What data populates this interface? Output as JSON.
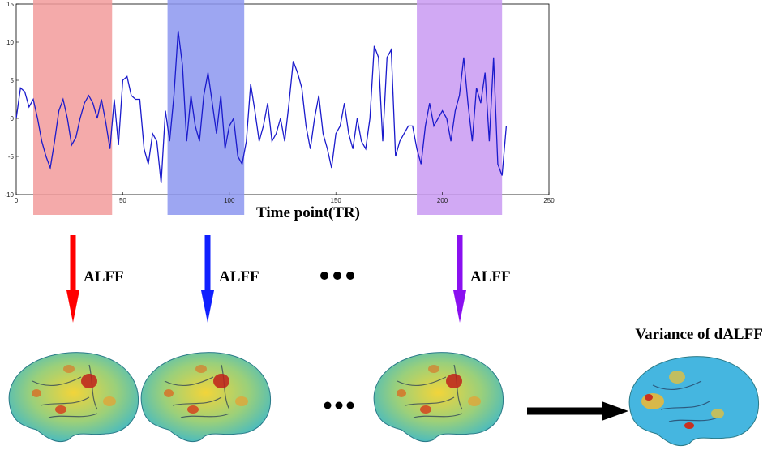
{
  "chart_data": {
    "type": "line",
    "x_label": "Time point(TR)",
    "x": [
      0,
      2,
      4,
      6,
      8,
      10,
      12,
      14,
      16,
      18,
      20,
      22,
      24,
      26,
      28,
      30,
      32,
      34,
      36,
      38,
      40,
      42,
      44,
      46,
      48,
      50,
      52,
      54,
      56,
      58,
      60,
      62,
      64,
      66,
      68,
      70,
      72,
      74,
      76,
      78,
      80,
      82,
      84,
      86,
      88,
      90,
      92,
      94,
      96,
      98,
      100,
      102,
      104,
      106,
      108,
      110,
      112,
      114,
      116,
      118,
      120,
      122,
      124,
      126,
      128,
      130,
      132,
      134,
      136,
      138,
      140,
      142,
      144,
      146,
      148,
      150,
      152,
      154,
      156,
      158,
      160,
      162,
      164,
      166,
      168,
      170,
      172,
      174,
      176,
      178,
      180,
      182,
      184,
      186,
      188,
      190,
      192,
      194,
      196,
      198,
      200,
      202,
      204,
      206,
      208,
      210,
      212,
      214,
      216,
      218,
      220,
      222,
      224,
      226,
      228,
      230
    ],
    "series": [
      {
        "color": "#1a1acc",
        "values": [
          0,
          4,
          3.5,
          1.5,
          2.5,
          0,
          -3,
          -5,
          -6.5,
          -3,
          1,
          2.5,
          0,
          -3.5,
          -2.5,
          0,
          2,
          3,
          2,
          0,
          2.5,
          -0.5,
          -4,
          2.5,
          -3.5,
          5,
          5.5,
          3,
          2.5,
          2.5,
          -4,
          -6,
          -2,
          -3,
          -8.5,
          1,
          -3,
          3,
          11.5,
          7,
          -3,
          3,
          -1,
          -3,
          3,
          6,
          2,
          -2,
          3,
          -4,
          -1,
          0,
          -5,
          -6,
          -3,
          4.5,
          1,
          -3,
          -1,
          2,
          -3,
          -2,
          0,
          -3,
          2,
          7.5,
          6,
          4,
          -1,
          -4,
          0,
          3,
          -2,
          -4,
          -6.5,
          -2,
          -1,
          2,
          -2,
          -4,
          0,
          -3,
          -4,
          0,
          9.5,
          8,
          -3,
          8,
          9,
          -5,
          -3,
          -2,
          -1,
          -1,
          -4,
          -6,
          -1,
          2,
          -1,
          0,
          1,
          0,
          -3,
          1,
          3,
          8,
          2,
          -3,
          4,
          2,
          6,
          -3,
          8,
          -6,
          -7.5,
          -1
        ]
      }
    ],
    "spans": [
      {
        "start": 8,
        "end": 45,
        "color": "#f29b9b"
      },
      {
        "start": 71,
        "end": 107,
        "color": "#8c96f0"
      },
      {
        "start": 188,
        "end": 228,
        "color": "#c99af2"
      }
    ],
    "xlim": [
      0,
      250
    ],
    "xticks": [
      0,
      50,
      100,
      150,
      200,
      250
    ],
    "ylim": [
      -10,
      15
    ],
    "yticks": [
      -10,
      -5,
      0,
      5,
      10,
      15
    ]
  },
  "diagram": {
    "arrow_labels": [
      "ALFF",
      "ALFF",
      "ALFF"
    ],
    "result_label": "Variance of dALFF"
  }
}
